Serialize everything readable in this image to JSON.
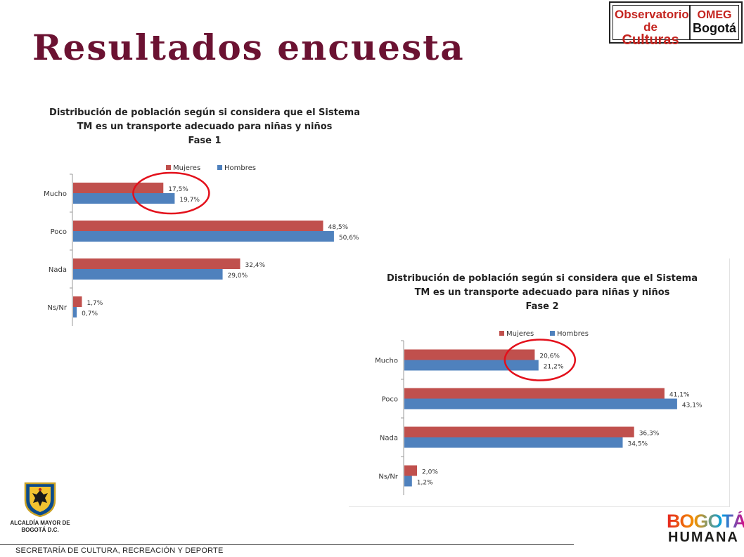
{
  "header": {
    "title": "Resultados encuesta",
    "logo_observatorio": {
      "line1": "Observatorio",
      "line2_prefix": "de ",
      "line2_big": "Culturas",
      "omeg": "OMEG",
      "bogota": "Bogotá"
    }
  },
  "footer": {
    "alcaldia": "ALCALDÍA MAYOR DE BOGOTÁ D.C.",
    "secretaria": "SECRETARÍA DE CULTURA, RECREACIÓN Y DEPORTE",
    "bogota_humana_top": "BOGOTÁ",
    "bogota_humana_bottom": "HUMANA"
  },
  "colors": {
    "mujeres": "#c0504d",
    "hombres": "#4f81bd",
    "highlight": "#e3101b",
    "title": "#6b1232"
  },
  "chart_data": [
    {
      "type": "bar",
      "orientation": "horizontal",
      "title": "Distribución de población según si considera que el Sistema TM es un transporte adecuado para niñas y niños Fase 1",
      "title_lines": [
        "Distribución de población según si considera que el Sistema",
        "TM es un transporte adecuado para niñas y niños",
        "Fase 1"
      ],
      "categories": [
        "Mucho",
        "Poco",
        "Nada",
        "Ns/Nr"
      ],
      "series": [
        {
          "name": "Mujeres",
          "values": [
            17.5,
            48.5,
            32.4,
            1.7
          ],
          "labels": [
            "17,5%",
            "48,5%",
            "32,4%",
            "1,7%"
          ]
        },
        {
          "name": "Hombres",
          "values": [
            19.7,
            50.6,
            29.0,
            0.7
          ],
          "labels": [
            "19,7%",
            "50,6%",
            "29,0%",
            "0,7%"
          ]
        }
      ],
      "legend": "top",
      "grid": false,
      "highlight_category": "Mucho"
    },
    {
      "type": "bar",
      "orientation": "horizontal",
      "title": "Distribución de población según si considera que el Sistema TM es un transporte adecuado para niñas y niños Fase 2",
      "title_lines": [
        "Distribución de población según si considera que el Sistema",
        "TM es un transporte adecuado para niñas y niños",
        "Fase 2"
      ],
      "categories": [
        "Mucho",
        "Poco",
        "Nada",
        "Ns/Nr"
      ],
      "series": [
        {
          "name": "Mujeres",
          "values": [
            20.6,
            41.1,
            36.3,
            2.0
          ],
          "labels": [
            "20,6%",
            "41,1%",
            "36,3%",
            "2,0%"
          ]
        },
        {
          "name": "Hombres",
          "values": [
            21.2,
            43.1,
            34.5,
            1.2
          ],
          "labels": [
            "21,2%",
            "43,1%",
            "34,5%",
            "1,2%"
          ]
        }
      ],
      "legend": "top",
      "grid": false,
      "highlight_category": "Mucho"
    }
  ]
}
